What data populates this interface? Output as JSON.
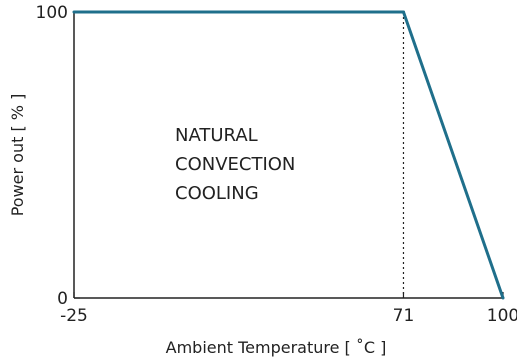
{
  "chart_data": {
    "type": "line",
    "title": "",
    "xlabel": "Ambient Temperature [ ˚C ]",
    "ylabel": "Power out [ % ]",
    "xlim": [
      -25,
      100
    ],
    "ylim": [
      0,
      100
    ],
    "x_ticks": [
      -25,
      71,
      100
    ],
    "y_ticks": [
      0,
      100
    ],
    "x_tick_labels": [
      "-25",
      "71",
      "100"
    ],
    "y_tick_labels": [
      "0",
      "100"
    ],
    "grid": false,
    "series": [
      {
        "color": "#1f6f8b",
        "points": [
          {
            "x": -25,
            "y": 100
          },
          {
            "x": 71,
            "y": 100
          },
          {
            "x": 100,
            "y": 0
          }
        ]
      }
    ],
    "reference_lines": [
      {
        "orientation": "vertical",
        "x": 71,
        "style": "dotted"
      }
    ],
    "annotation": {
      "lines": [
        "NATURAL",
        "CONVECTION",
        "COOLING"
      ]
    }
  }
}
